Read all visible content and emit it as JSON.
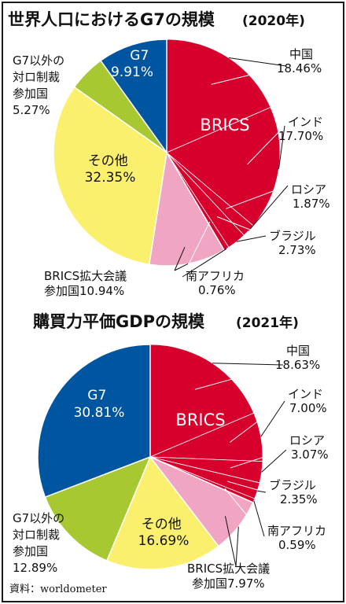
{
  "source_label": "資料：worldometer",
  "chart_data": [
    {
      "type": "pie",
      "title": "世界人口におけるG7の規模",
      "title_year": "(2020年)",
      "unit": "%",
      "group_label": "BRICS",
      "slices": [
        {
          "id": "china",
          "label": "中国",
          "value": 18.46,
          "value_text": "18.46%",
          "color": "#d7002d",
          "group": "BRICS"
        },
        {
          "id": "india",
          "label": "インド",
          "value": 17.7,
          "value_text": "17.70%",
          "color": "#d7002d",
          "group": "BRICS"
        },
        {
          "id": "russia",
          "label": "ロシア",
          "value": 1.87,
          "value_text": "1.87%",
          "color": "#d7002d",
          "group": "BRICS"
        },
        {
          "id": "brazil",
          "label": "ブラジル",
          "value": 2.73,
          "value_text": "2.73%",
          "color": "#d7002d",
          "group": "BRICS"
        },
        {
          "id": "south-africa",
          "label": "南アフリカ",
          "value": 0.76,
          "value_text": "0.76%",
          "color": "#d7002d",
          "group": "BRICS"
        },
        {
          "id": "brics-expansion",
          "label": "BRICS拡大会議参加国",
          "label_lines": [
            "BRICS拡大会議",
            "参加国10.94%"
          ],
          "value": 10.94,
          "value_text": "10.94%",
          "color": "#f0a5c2"
        },
        {
          "id": "other",
          "label": "その他",
          "value": 32.35,
          "value_text": "32.35%",
          "color": "#faf06e"
        },
        {
          "id": "g7-sanctions",
          "label": "G7以外の対ロ制裁参加国",
          "label_lines": [
            "G7以外の",
            "対ロ制裁",
            "参加国",
            "5.27%"
          ],
          "value": 5.27,
          "value_text": "5.27%",
          "color": "#a8c832"
        },
        {
          "id": "g7",
          "label": "G7",
          "value": 9.91,
          "value_text": "9.91%",
          "color": "#0055a0"
        }
      ]
    },
    {
      "type": "pie",
      "title": "購買力平価GDPの規模",
      "title_year": "(2021年)",
      "unit": "%",
      "group_label": "BRICS",
      "slices": [
        {
          "id": "china",
          "label": "中国",
          "value": 18.63,
          "value_text": "18.63%",
          "color": "#d7002d",
          "group": "BRICS"
        },
        {
          "id": "india",
          "label": "インド",
          "value": 7.0,
          "value_text": "7.00%",
          "color": "#d7002d",
          "group": "BRICS"
        },
        {
          "id": "russia",
          "label": "ロシア",
          "value": 3.07,
          "value_text": "3.07%",
          "color": "#d7002d",
          "group": "BRICS"
        },
        {
          "id": "brazil",
          "label": "ブラジル",
          "value": 2.35,
          "value_text": "2.35%",
          "color": "#d7002d",
          "group": "BRICS"
        },
        {
          "id": "south-africa",
          "label": "南アフリカ",
          "value": 0.59,
          "value_text": "0.59%",
          "color": "#d7002d",
          "group": "BRICS"
        },
        {
          "id": "brics-expansion",
          "label": "BRICS拡大会議参加国",
          "label_lines": [
            "BRICS拡大会議",
            "参加国7.97%"
          ],
          "value": 7.97,
          "value_text": "7.97%",
          "color": "#f0a5c2"
        },
        {
          "id": "other",
          "label": "その他",
          "value": 16.69,
          "value_text": "16.69%",
          "color": "#faf06e"
        },
        {
          "id": "g7-sanctions",
          "label": "G7以外の対ロ制裁参加国",
          "label_lines": [
            "G7以外の",
            "対ロ制裁",
            "参加国",
            "12.89%"
          ],
          "value": 12.89,
          "value_text": "12.89%",
          "color": "#a8c832"
        },
        {
          "id": "g7",
          "label": "G7",
          "value": 30.81,
          "value_text": "30.81%",
          "color": "#0055a0"
        }
      ]
    }
  ]
}
